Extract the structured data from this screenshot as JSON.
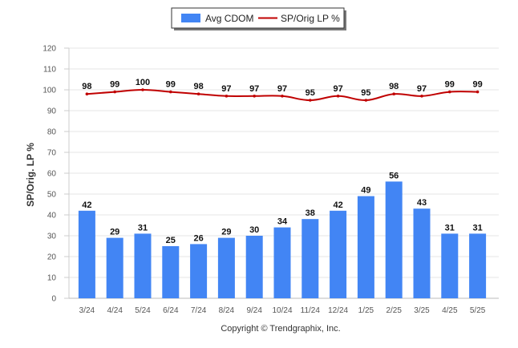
{
  "chart_data": {
    "type": "bar",
    "categories": [
      "3/24",
      "4/24",
      "5/24",
      "6/24",
      "7/24",
      "8/24",
      "9/24",
      "10/24",
      "11/24",
      "12/24",
      "1/25",
      "2/25",
      "3/25",
      "4/25",
      "5/25"
    ],
    "series": [
      {
        "name": "Avg CDOM",
        "type": "bar",
        "color": "#4285f4",
        "values": [
          42,
          29,
          31,
          25,
          26,
          29,
          30,
          34,
          38,
          42,
          49,
          56,
          43,
          31,
          31
        ]
      },
      {
        "name": "SP/Orig LP %",
        "type": "line",
        "color": "#c00000",
        "values": [
          98,
          99,
          100,
          99,
          98,
          97,
          97,
          97,
          95,
          97,
          95,
          98,
          97,
          99,
          99
        ]
      }
    ],
    "ylabel": "SP/Orig. LP %",
    "xlabel": "",
    "ylim": [
      0,
      120
    ],
    "yticks": [
      "0",
      "10",
      "20",
      "30",
      "40",
      "50",
      "60",
      "70",
      "80",
      "90",
      "100",
      "110",
      "120"
    ],
    "grid": true,
    "legend_position": "top-center",
    "footer": "Copyright © Trendgraphix, Inc."
  }
}
